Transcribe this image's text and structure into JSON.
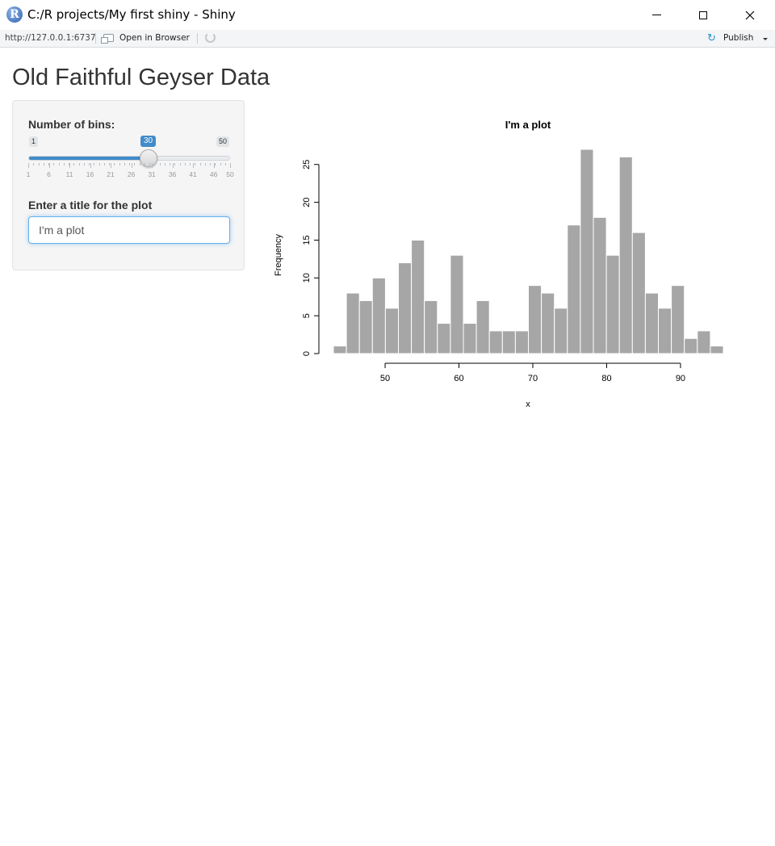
{
  "window": {
    "title": "C:/R projects/My first shiny - Shiny",
    "logo_letter": "R"
  },
  "toolbar": {
    "url": "http://127.0.0.1:6737",
    "open_in_browser": "Open in Browser",
    "publish": "Publish"
  },
  "app": {
    "title": "Old Faithful Geyser Data"
  },
  "slider": {
    "label": "Number of bins:",
    "min": 1,
    "max": 50,
    "value": 30,
    "min_label": "1",
    "max_label": "50",
    "value_label": "30",
    "grid_labels": [
      "1",
      "6",
      "11",
      "16",
      "21",
      "26",
      "31",
      "36",
      "41",
      "46",
      "50"
    ],
    "accent": "#428bca"
  },
  "title_input": {
    "label": "Enter a title for the plot",
    "value": "I'm a plot"
  },
  "chart_data": {
    "type": "bar",
    "title": "I'm a plot",
    "xlabel": "x",
    "ylabel": "Frequency",
    "bar_color": "#a6a6a6",
    "bin_width": 1.76,
    "bin_start": 43.0,
    "counts": [
      1,
      8,
      7,
      10,
      6,
      12,
      15,
      7,
      4,
      13,
      4,
      7,
      3,
      3,
      3,
      9,
      8,
      6,
      17,
      27,
      18,
      13,
      26,
      16,
      8,
      6,
      9,
      2,
      3,
      1
    ],
    "xticks": [
      50,
      60,
      70,
      80,
      90
    ],
    "yticks": [
      0,
      5,
      10,
      15,
      20,
      25
    ],
    "xlim": [
      43.0,
      95.8
    ],
    "ylim": [
      0,
      27
    ]
  }
}
